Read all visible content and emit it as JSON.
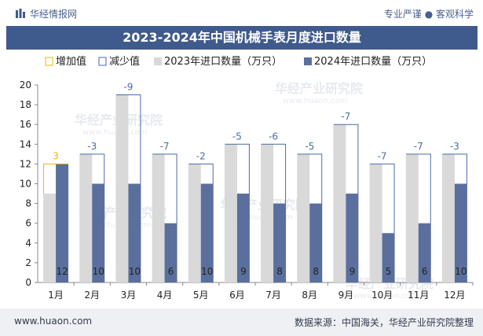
{
  "header": {
    "brand": "华经情报网",
    "tagline": "专业严谨 ● 客观科学"
  },
  "watermark": {
    "text": "华经产业研究院",
    "url": "www.huaon.com"
  },
  "footer": {
    "website": "www.huaon.com",
    "source": "数据来源：中国海关，华经产业研究院整理"
  },
  "colors": {
    "title_bg": "#3f5a8c",
    "bar_2023": "#d9d9d9",
    "bar_2024": "#5a6f9d",
    "increase": "#f0b400",
    "decrease": "#4a6aa8",
    "footer_bg": "#eef0f4"
  },
  "chart_data": {
    "type": "bar",
    "title": "2023-2024年中国机械手表月度进口数量",
    "categories": [
      "1月",
      "2月",
      "3月",
      "4月",
      "5月",
      "6月",
      "7月",
      "8月",
      "9月",
      "10月",
      "11月",
      "12月"
    ],
    "series": [
      {
        "name": "2023年进口数量（万只）",
        "values": [
          9,
          13,
          19,
          13,
          12,
          14,
          14,
          13,
          16,
          12,
          13,
          13
        ]
      },
      {
        "name": "2024年进口数量（万只）",
        "values": [
          12,
          10,
          10,
          6,
          10,
          9,
          8,
          8,
          9,
          5,
          6,
          10
        ]
      }
    ],
    "change": [
      3,
      -3,
      -9,
      -7,
      -2,
      -5,
      -6,
      -5,
      -7,
      -7,
      -7,
      -3
    ],
    "change_labels": [
      "3",
      "-3",
      "-9",
      "-7",
      "-2",
      "-5",
      "-6",
      "-5",
      "-7",
      "-7",
      "-7",
      "-3"
    ],
    "legend": [
      "增加值",
      "减少值",
      "2023年进口数量（万只）",
      "2024年进口数量（万只）"
    ],
    "legend_position": "top",
    "yticks": [
      0,
      2,
      4,
      6,
      8,
      10,
      12,
      14,
      16,
      18,
      20
    ],
    "ylim": [
      0,
      20
    ],
    "xlabel": "",
    "ylabel": "",
    "grid": false
  }
}
